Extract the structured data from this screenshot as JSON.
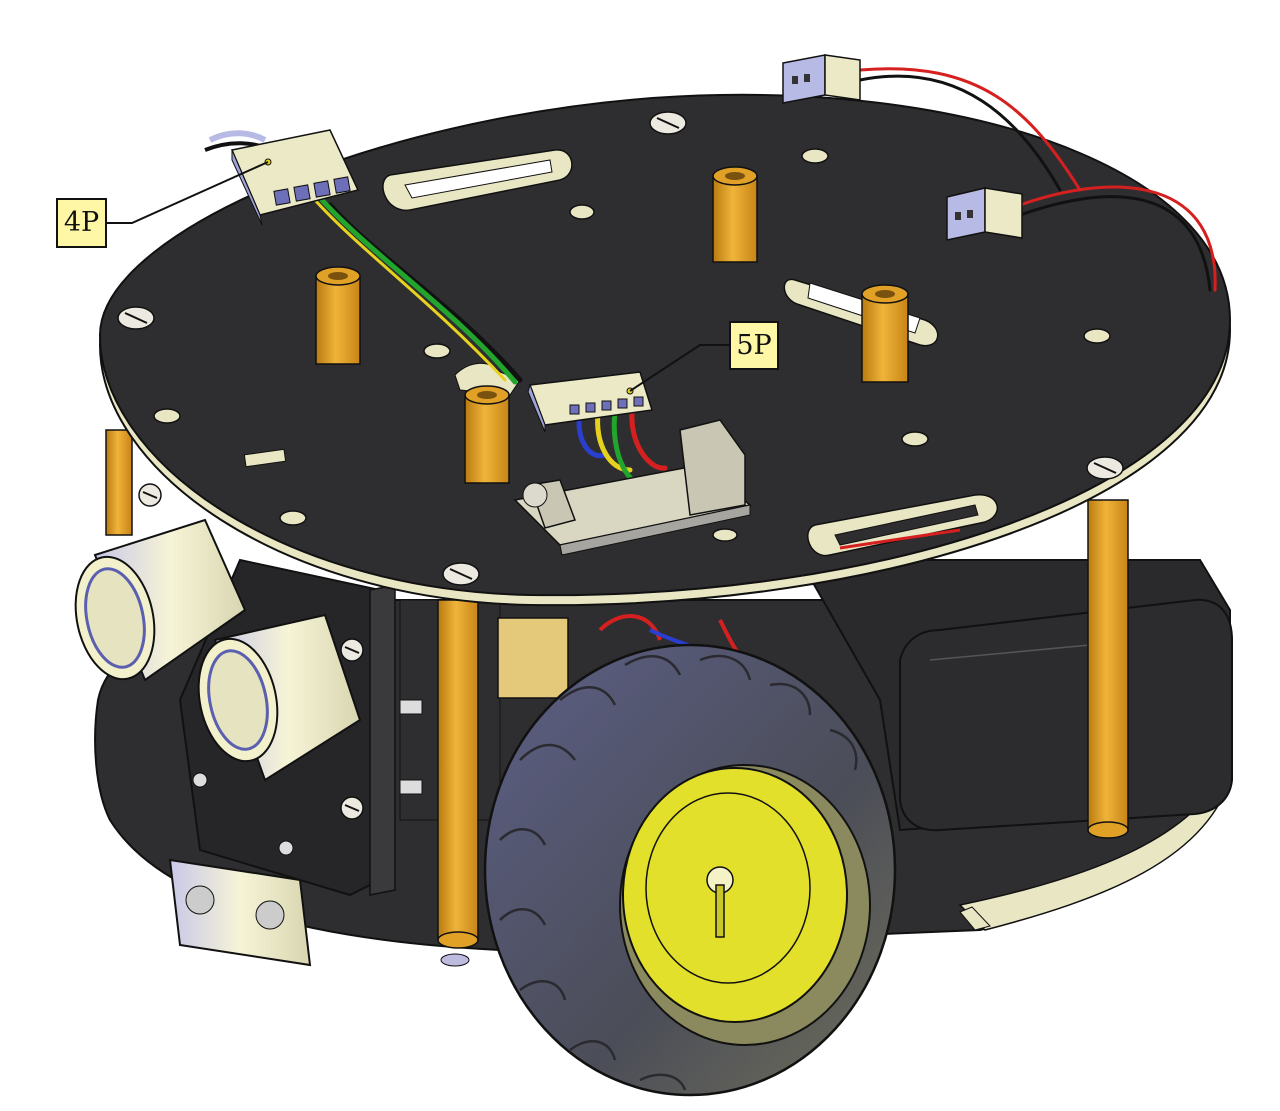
{
  "callouts": {
    "connector_4p": "4P",
    "connector_5p": "5P"
  },
  "colors": {
    "plate": "#2e2e30",
    "plate_edge": "#e9e6c4",
    "standoff": "#e0a126",
    "callout_fill": "#fdf7a6",
    "hub": "#e2e02a",
    "tire": "#4a4c52",
    "sensor": "#f3f1cc",
    "wire_red": "#d62020",
    "wire_black": "#111111",
    "wire_green": "#22a52c",
    "wire_yellow": "#e6d21e",
    "wire_blue": "#2a3ed0"
  },
  "icons": {
    "robot": "robot-car-chassis-icon"
  }
}
